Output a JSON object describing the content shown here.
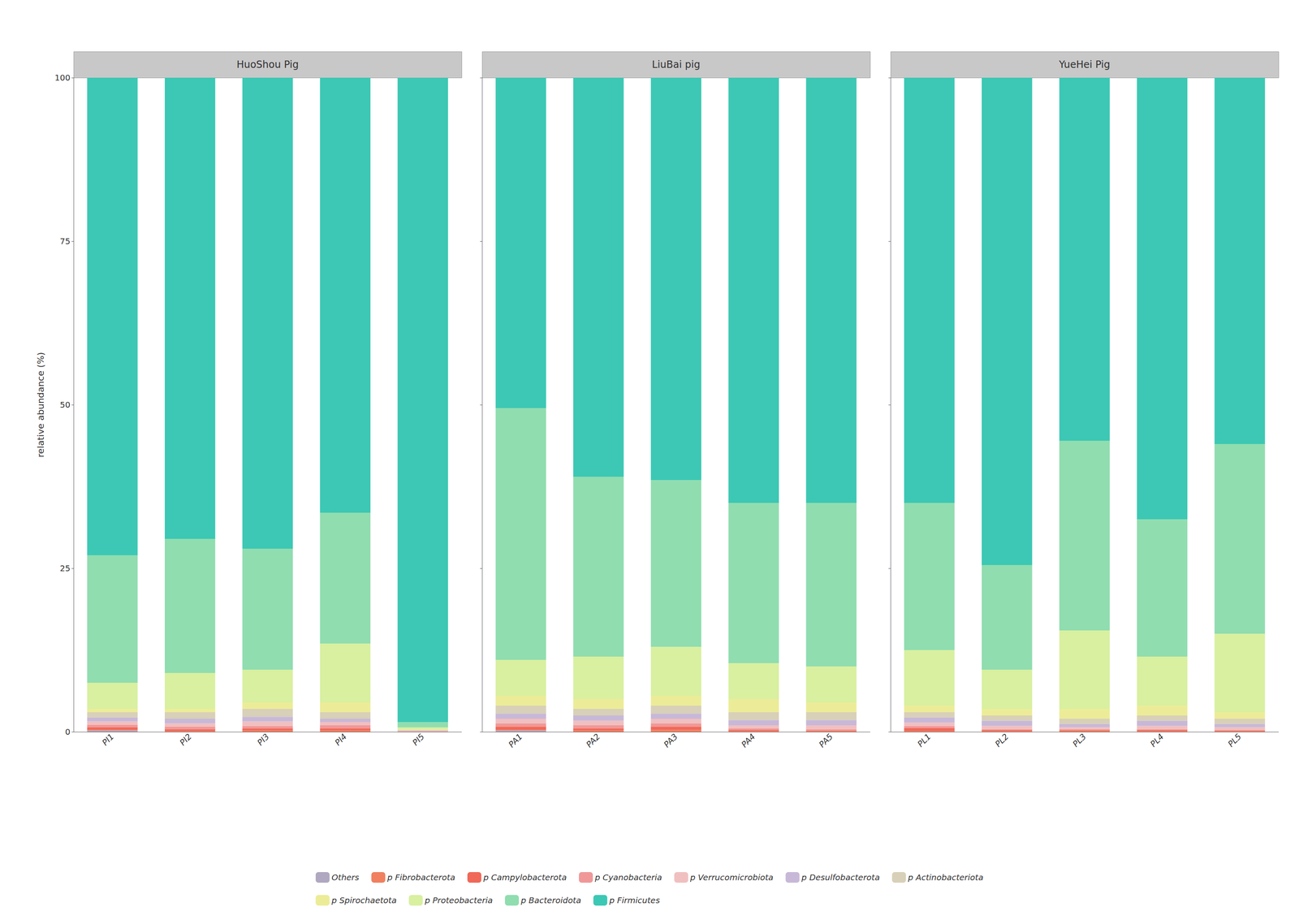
{
  "chart_data": [
    {
      "type": "bar",
      "title": "HuoShou Pig",
      "ylabel": "relative abundance (%)",
      "categories": [
        "PI1",
        "PI2",
        "PI3",
        "PI4",
        "PI5"
      ],
      "stacked": true,
      "ylim": [
        0,
        100
      ],
      "yticks": [
        0,
        25,
        50,
        75,
        100
      ],
      "grid": false,
      "legend": "bottom",
      "series": [
        {
          "name": "Others",
          "color": "#B0A8C0",
          "values": [
            0.2,
            0.0,
            0.0,
            0.0,
            0.0
          ]
        },
        {
          "name": "p Fibrobacterota",
          "color": "#F08060",
          "values": [
            0.1,
            0.1,
            0.2,
            0.2,
            0.02
          ]
        },
        {
          "name": "p Campylobacterota",
          "color": "#F06858",
          "values": [
            0.4,
            0.3,
            0.3,
            0.3,
            0.03
          ]
        },
        {
          "name": "p Cyanobacteria",
          "color": "#F09898",
          "values": [
            0.4,
            0.4,
            0.4,
            0.5,
            0.04
          ]
        },
        {
          "name": "p Verrucomicrobiota",
          "color": "#F0C0C0",
          "values": [
            0.5,
            0.5,
            0.7,
            0.5,
            0.05
          ]
        },
        {
          "name": "p Desulfobacterota",
          "color": "#C8B8D8",
          "values": [
            0.6,
            0.7,
            0.7,
            0.5,
            0.05
          ]
        },
        {
          "name": "p Actinobacteriota",
          "color": "#D8D0B8",
          "values": [
            0.8,
            1.0,
            1.2,
            1.0,
            0.1
          ]
        },
        {
          "name": "p Spirochaetota",
          "color": "#ECEC98",
          "values": [
            0.5,
            0.5,
            1.0,
            1.5,
            0.1
          ]
        },
        {
          "name": "p Proteobacteria",
          "color": "#D8F0A0",
          "values": [
            4.0,
            5.5,
            5.0,
            9.0,
            0.3
          ]
        },
        {
          "name": "p Bacteroidota",
          "color": "#90DDB0",
          "values": [
            19.5,
            20.5,
            18.5,
            20.0,
            0.8
          ]
        },
        {
          "name": "p Firmicutes",
          "color": "#3CC8B4",
          "values": [
            73.0,
            70.5,
            72.0,
            66.5,
            98.5
          ]
        }
      ]
    },
    {
      "type": "bar",
      "title": "LiuBai pig",
      "categories": [
        "PA1",
        "PA2",
        "PA3",
        "PA4",
        "PA5"
      ],
      "stacked": true,
      "ylim": [
        0,
        100
      ],
      "yticks": [
        0,
        25,
        50,
        75,
        100
      ],
      "grid": false,
      "legend": "bottom",
      "tick_labels": "x",
      "series": [
        {
          "name": "Others",
          "color": "#B0A8C0",
          "values": [
            0.2,
            0.0,
            0.0,
            0.0,
            0.0
          ]
        },
        {
          "name": "p Fibrobacterota",
          "color": "#F08060",
          "values": [
            0.1,
            0.2,
            0.3,
            0.1,
            0.1
          ]
        },
        {
          "name": "p Campylobacterota",
          "color": "#F06858",
          "values": [
            0.5,
            0.3,
            0.5,
            0.2,
            0.1
          ]
        },
        {
          "name": "p Cyanobacteria",
          "color": "#F09898",
          "values": [
            0.5,
            0.5,
            0.5,
            0.2,
            0.2
          ]
        },
        {
          "name": "p Verrucomicrobiota",
          "color": "#F0C0C0",
          "values": [
            0.7,
            0.7,
            0.7,
            0.5,
            0.6
          ]
        },
        {
          "name": "p Desulfobacterota",
          "color": "#C8B8D8",
          "values": [
            0.8,
            0.8,
            0.8,
            0.8,
            0.8
          ]
        },
        {
          "name": "p Actinobacteriota",
          "color": "#D8D0B8",
          "values": [
            1.2,
            1.0,
            1.2,
            1.2,
            1.2
          ]
        },
        {
          "name": "p Spirochaetota",
          "color": "#ECEC98",
          "values": [
            1.5,
            1.5,
            1.5,
            2.0,
            1.5
          ]
        },
        {
          "name": "p Proteobacteria",
          "color": "#D8F0A0",
          "values": [
            5.5,
            6.5,
            7.5,
            5.5,
            5.5
          ]
        },
        {
          "name": "p Bacteroidota",
          "color": "#90DDB0",
          "values": [
            38.5,
            27.5,
            25.5,
            24.5,
            25.0
          ]
        },
        {
          "name": "p Firmicutes",
          "color": "#3CC8B4",
          "values": [
            50.5,
            61.0,
            61.5,
            65.0,
            65.0
          ]
        }
      ]
    },
    {
      "type": "bar",
      "title": "YueHei Pig",
      "categories": [
        "PL1",
        "PL2",
        "PL3",
        "PL4",
        "PL5"
      ],
      "stacked": true,
      "ylim": [
        0,
        100
      ],
      "yticks": [
        0,
        25,
        50,
        75,
        100
      ],
      "grid": false,
      "legend": "bottom",
      "tick_labels": "x",
      "series": [
        {
          "name": "Others",
          "color": "#B0A8C0",
          "values": [
            0.0,
            0.0,
            0.0,
            0.0,
            0.0
          ]
        },
        {
          "name": "p Fibrobacterota",
          "color": "#F08060",
          "values": [
            0.1,
            0.1,
            0.2,
            0.1,
            0.1
          ]
        },
        {
          "name": "p Campylobacterota",
          "color": "#F06858",
          "values": [
            0.5,
            0.2,
            0.1,
            0.2,
            0.1
          ]
        },
        {
          "name": "p Cyanobacteria",
          "color": "#F09898",
          "values": [
            0.3,
            0.1,
            0.1,
            0.1,
            0.1
          ]
        },
        {
          "name": "p Verrucomicrobiota",
          "color": "#F0C0C0",
          "values": [
            0.5,
            0.5,
            0.3,
            0.5,
            0.4
          ]
        },
        {
          "name": "p Desulfobacterota",
          "color": "#C8B8D8",
          "values": [
            0.8,
            0.8,
            0.5,
            0.8,
            0.5
          ]
        },
        {
          "name": "p Actinobacteriota",
          "color": "#D8D0B8",
          "values": [
            0.8,
            0.8,
            0.8,
            0.8,
            0.8
          ]
        },
        {
          "name": "p Spirochaetota",
          "color": "#ECEC98",
          "values": [
            1.0,
            1.0,
            1.5,
            1.5,
            1.0
          ]
        },
        {
          "name": "p Proteobacteria",
          "color": "#D8F0A0",
          "values": [
            8.5,
            6.0,
            12.0,
            7.5,
            12.0
          ]
        },
        {
          "name": "p Bacteroidota",
          "color": "#90DDB0",
          "values": [
            22.5,
            16.0,
            29.0,
            21.0,
            29.0
          ]
        },
        {
          "name": "p Firmicutes",
          "color": "#3CC8B4",
          "values": [
            65.0,
            74.5,
            55.5,
            67.5,
            56.0
          ]
        }
      ]
    }
  ]
}
